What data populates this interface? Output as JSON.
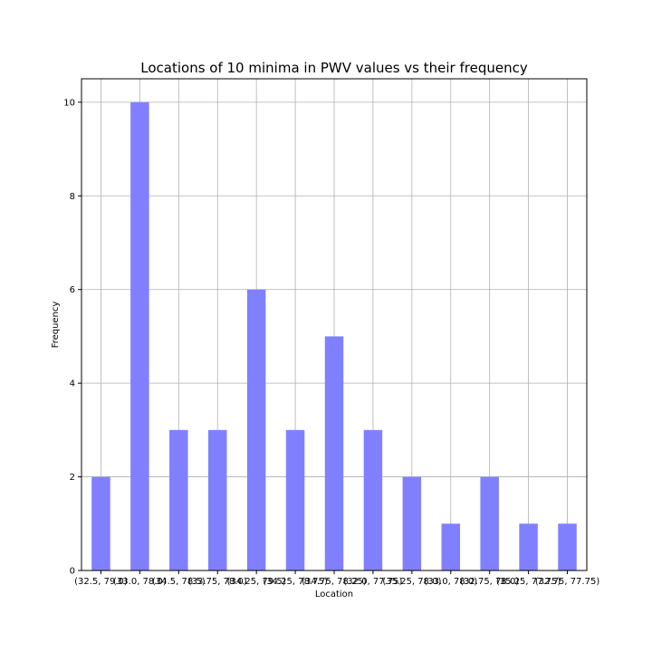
{
  "chart_data": {
    "type": "bar",
    "title": "Locations of 10 minima in PWV values vs their frequency",
    "xlabel": "Location",
    "ylabel": "Frequency",
    "categories": [
      "(32.5, 79.0)",
      "(33.0, 78.0)",
      "(34.5, 78.5)",
      "(33.75, 78.0)",
      "(34.25, 79.5)",
      "(34.25, 78.75)",
      "(34.75, 78.25)",
      "(32.0, 77.75)",
      "(35.25, 78.0)",
      "(33.0, 78.0)",
      "(32.75, 78.0)",
      "(35.25, 77.75)",
      "(32.75, 77.75)"
    ],
    "values": [
      2,
      10,
      3,
      3,
      6,
      3,
      5,
      3,
      2,
      1,
      2,
      1,
      1
    ],
    "ylim": [
      0,
      10.5
    ],
    "yticks": [
      0,
      2,
      4,
      6,
      8,
      10
    ],
    "grid": true,
    "bar_color": "#8080ff",
    "grid_color": "#b0b0b0"
  }
}
